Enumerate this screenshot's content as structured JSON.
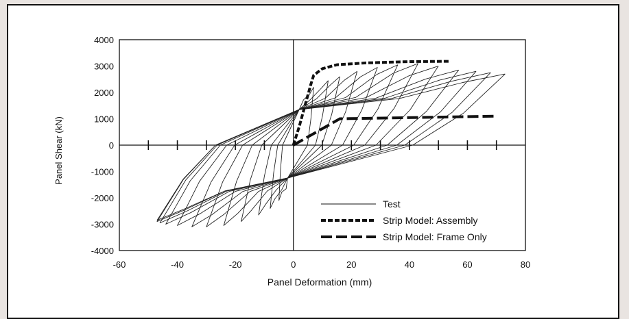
{
  "chart_data": {
    "type": "line",
    "title": "",
    "xlabel": "Panel Deformation (mm)",
    "ylabel": "Panel Shear (kN)",
    "xlim": [
      -60,
      80
    ],
    "ylim": [
      -4000,
      4000
    ],
    "x_ticks": [
      -60,
      -40,
      -20,
      0,
      20,
      40,
      60,
      80
    ],
    "y_ticks": [
      -4000,
      -3000,
      -2000,
      -1000,
      0,
      1000,
      2000,
      3000,
      4000
    ],
    "x_ticks_labels": [
      "-60",
      "-40",
      "-20",
      "0",
      "20",
      "40",
      "60",
      "80"
    ],
    "y_ticks_labels": [
      "-4000",
      "-3000",
      "-2000",
      "-1000",
      "0",
      "1000",
      "2000",
      "3000",
      "4000"
    ],
    "center_axis_ticks_x": [
      -50,
      -40,
      -30,
      -20,
      -10,
      10,
      20,
      30,
      40,
      50,
      60,
      70
    ],
    "grid": false,
    "legend_position": "bottom-right",
    "legend": [
      "Test",
      "Strip Model: Assembly",
      "Strip Model: Frame Only"
    ],
    "series": [
      {
        "name": "Test",
        "style": "thin-solid",
        "cycles": [
          {
            "pos": [
              7,
              2200
            ],
            "neg": [
              -5,
              -2100
            ]
          },
          {
            "pos": [
              12,
              2450
            ],
            "neg": [
              -8,
              -2400
            ]
          },
          {
            "pos": [
              16,
              2600
            ],
            "neg": [
              -12,
              -2650
            ]
          },
          {
            "pos": [
              22,
              2800
            ],
            "neg": [
              -18,
              -2900
            ]
          },
          {
            "pos": [
              29,
              2950
            ],
            "neg": [
              -24,
              -3050
            ]
          },
          {
            "pos": [
              36,
              3050
            ],
            "neg": [
              -30,
              -3100
            ]
          },
          {
            "pos": [
              43,
              3100
            ],
            "neg": [
              -35,
              -3100
            ]
          },
          {
            "pos": [
              50,
              3000
            ],
            "neg": [
              -40,
              -3050
            ]
          },
          {
            "pos": [
              57,
              2850
            ],
            "neg": [
              -44,
              -3000
            ]
          },
          {
            "pos": [
              63,
              2800
            ],
            "neg": [
              -46,
              -2950
            ]
          },
          {
            "pos": [
              68,
              2750
            ],
            "neg": [
              -47,
              -2900
            ]
          },
          {
            "pos": [
              73,
              2700
            ],
            "neg": [
              -47,
              -2850
            ]
          }
        ]
      },
      {
        "name": "Strip Model: Assembly",
        "style": "short-dash",
        "x": [
          0,
          2,
          4,
          6,
          7,
          10,
          15,
          25,
          40,
          54
        ],
        "y": [
          0,
          700,
          1500,
          2300,
          2650,
          2900,
          3050,
          3120,
          3170,
          3180
        ]
      },
      {
        "name": "Strip Model: Frame Only",
        "style": "long-dash",
        "x": [
          0,
          16,
          70
        ],
        "y": [
          0,
          1000,
          1100
        ]
      }
    ],
    "colors": {
      "line": "#111111",
      "background": "#ffffff",
      "page": "#e9e4e1"
    }
  }
}
